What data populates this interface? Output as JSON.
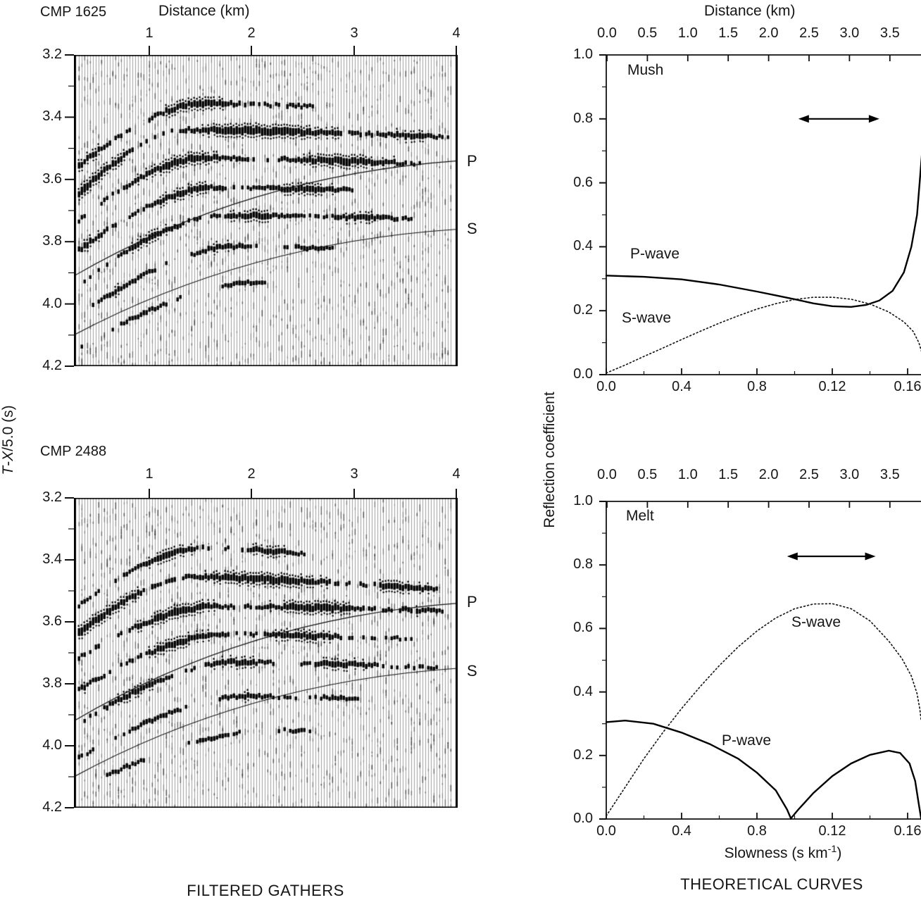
{
  "colors": {
    "ink": "#111111",
    "trace_gray": "#a0a0a0",
    "background": "#ffffff"
  },
  "left_column": {
    "ylabel": {
      "t": "T",
      "dash": "-",
      "x": "X",
      "rest": "/5.0 (s)"
    },
    "caption": "FILTERED GATHERS",
    "panels": [
      {
        "title": "CMP 1625",
        "top_axis_title": "Distance (km)",
        "top_ticks": [
          "1",
          "2",
          "3",
          "4"
        ],
        "y_ticks": [
          "3.2",
          "3.4",
          "3.6",
          "3.8",
          "4.0",
          "4.2"
        ],
        "p_label": "P",
        "s_label": "S"
      },
      {
        "title": "CMP 2488",
        "top_ticks": [
          "1",
          "2",
          "3",
          "4"
        ],
        "y_ticks": [
          "3.2",
          "3.4",
          "3.6",
          "3.8",
          "4.0",
          "4.2"
        ],
        "p_label": "P",
        "s_label": "S"
      }
    ]
  },
  "right_column": {
    "top_axis_title": "Distance (km)",
    "ylabel": "Reflection coefficient",
    "xlabel": {
      "pre": "Slowness (s km",
      "sup": "-1",
      "post": ")"
    },
    "caption": "THEORETICAL CURVES",
    "distance_ticks": [
      "0.0",
      "0.5",
      "1.0",
      "1.5",
      "2.0",
      "2.5",
      "3.0",
      "3.5"
    ],
    "slowness_ticks": [
      "0.0",
      "0.4",
      "0.8",
      "0.12",
      "0.16"
    ],
    "y_ticks": [
      "1.0",
      "0.8",
      "0.6",
      "0.4",
      "0.2",
      "0.0"
    ],
    "plots": [
      {
        "label": "Mush",
        "p_label": "P-wave",
        "s_label": "S-wave"
      },
      {
        "label": "Melt",
        "p_label": "P-wave",
        "s_label": "S-wave"
      }
    ]
  },
  "chart_data": [
    {
      "type": "seismic-gather",
      "title": "CMP 1625",
      "xlabel": "Distance (km)",
      "xlim": [
        0.27,
        4.0
      ],
      "ylabel": "T-X/5.0 (s)",
      "ylim": [
        3.2,
        4.2
      ],
      "y_increases_downward": true,
      "x_ticks": [
        1,
        2,
        3,
        4
      ],
      "y_ticks": [
        3.2,
        3.4,
        3.6,
        3.8,
        4.0,
        4.2
      ],
      "overlay_lines": {
        "P": {
          "t_left": 3.91,
          "t_right": 3.54
        },
        "S": {
          "t_left": 4.1,
          "t_right": 3.76
        }
      },
      "events_format": [
        "t_at_left_edge",
        "t_at_peak",
        "x_peak_km",
        "t_at_right_edge",
        "amplitude",
        "x_start_km",
        "x_end_km",
        "patch_freq",
        "patch_phase"
      ],
      "events": [
        [
          3.57,
          3.355,
          1.5,
          3.39,
          1.05,
          0.27,
          2.75,
          5.0,
          0.5
        ],
        [
          3.66,
          3.44,
          1.35,
          3.465,
          1.45,
          0.27,
          4.0,
          3.2,
          1.2
        ],
        [
          3.745,
          3.53,
          1.5,
          3.555,
          1.15,
          0.27,
          4.0,
          4.1,
          2.4
        ],
        [
          3.84,
          3.625,
          1.6,
          3.645,
          0.95,
          0.27,
          3.4,
          5.5,
          0.2
        ],
        [
          3.95,
          3.715,
          1.7,
          3.73,
          0.9,
          0.27,
          4.0,
          6.0,
          1.8
        ],
        [
          4.05,
          3.815,
          1.8,
          3.835,
          0.7,
          0.27,
          3.0,
          6.5,
          2.9
        ],
        [
          4.15,
          3.93,
          2.0,
          3.945,
          0.55,
          0.3,
          2.6,
          7.0,
          0.9
        ]
      ],
      "seed": 12345
    },
    {
      "type": "seismic-gather",
      "title": "CMP 2488",
      "xlabel": "Distance (km)",
      "xlim": [
        0.27,
        4.0
      ],
      "ylabel": "T-X/5.0 (s)",
      "ylim": [
        3.2,
        4.2
      ],
      "y_increases_downward": true,
      "x_ticks": [
        1,
        2,
        3,
        4
      ],
      "y_ticks": [
        3.2,
        3.4,
        3.6,
        3.8,
        4.0,
        4.2
      ],
      "overlay_lines": {
        "P": {
          "t_left": 3.92,
          "t_right": 3.54
        },
        "S": {
          "t_left": 4.1,
          "t_right": 3.75
        }
      },
      "events": [
        [
          3.56,
          3.36,
          1.5,
          3.43,
          0.95,
          0.27,
          2.7,
          5.5,
          1.5
        ],
        [
          3.65,
          3.455,
          1.4,
          3.5,
          1.35,
          0.27,
          3.95,
          3.6,
          0.3
        ],
        [
          3.725,
          3.55,
          1.6,
          3.565,
          1.25,
          0.27,
          4.0,
          4.6,
          2.0
        ],
        [
          3.83,
          3.64,
          1.7,
          3.66,
          1.0,
          0.27,
          3.7,
          5.2,
          1.1
        ],
        [
          3.94,
          3.73,
          1.8,
          3.75,
          0.85,
          0.27,
          4.0,
          6.2,
          2.6
        ],
        [
          4.05,
          3.84,
          1.9,
          3.86,
          0.65,
          0.27,
          3.3,
          6.8,
          0.7
        ],
        [
          4.15,
          3.95,
          2.1,
          3.96,
          0.5,
          0.3,
          2.9,
          7.5,
          1.9
        ]
      ],
      "seed": 67890
    },
    {
      "type": "line",
      "title": "Mush",
      "top_axis": {
        "label": "Distance (km)",
        "ticks": [
          0.0,
          0.5,
          1.0,
          1.5,
          2.0,
          2.5,
          3.0,
          3.5
        ]
      },
      "xlabel": "Slowness (s km-1)",
      "x_tick_labels_as_printed": [
        "0.0",
        "0.4",
        "0.8",
        "0.12",
        "0.16"
      ],
      "ylabel": "Reflection coefficient",
      "ylim": [
        0.0,
        1.0
      ],
      "xlim": [
        0.0,
        1.672
      ],
      "series": [
        {
          "name": "P-wave",
          "style": "solid",
          "points": [
            [
              0,
              0.31
            ],
            [
              0.2,
              0.306
            ],
            [
              0.4,
              0.298
            ],
            [
              0.6,
              0.282
            ],
            [
              0.8,
              0.26
            ],
            [
              0.9,
              0.248
            ],
            [
              1.0,
              0.236
            ],
            [
              1.1,
              0.223
            ],
            [
              1.2,
              0.214
            ],
            [
              1.3,
              0.212
            ],
            [
              1.38,
              0.218
            ],
            [
              1.45,
              0.232
            ],
            [
              1.52,
              0.262
            ],
            [
              1.58,
              0.32
            ],
            [
              1.62,
              0.4
            ],
            [
              1.65,
              0.5
            ],
            [
              1.68,
              0.72
            ]
          ]
        },
        {
          "name": "S-wave",
          "style": "dotted",
          "points": [
            [
              0,
              0.005
            ],
            [
              0.1,
              0.03
            ],
            [
              0.2,
              0.057
            ],
            [
              0.3,
              0.083
            ],
            [
              0.4,
              0.11
            ],
            [
              0.5,
              0.136
            ],
            [
              0.6,
              0.161
            ],
            [
              0.7,
              0.184
            ],
            [
              0.8,
              0.205
            ],
            [
              0.9,
              0.222
            ],
            [
              1.0,
              0.235
            ],
            [
              1.1,
              0.242
            ],
            [
              1.2,
              0.242
            ],
            [
              1.3,
              0.236
            ],
            [
              1.4,
              0.221
            ],
            [
              1.5,
              0.196
            ],
            [
              1.58,
              0.165
            ],
            [
              1.63,
              0.135
            ],
            [
              1.66,
              0.1
            ],
            [
              1.68,
              0.06
            ]
          ]
        }
      ],
      "annotations": {
        "double_arrow": {
          "x1": 1.02,
          "x2": 1.45,
          "y": 0.8
        }
      }
    },
    {
      "type": "line",
      "title": "Melt",
      "top_axis": {
        "label": "Distance (km)",
        "ticks": [
          0.0,
          0.5,
          1.0,
          1.5,
          2.0,
          2.5,
          3.0,
          3.5
        ]
      },
      "xlabel": "Slowness (s km-1)",
      "x_tick_labels_as_printed": [
        "0.0",
        "0.4",
        "0.8",
        "0.12",
        "0.16"
      ],
      "ylabel": "Reflection coefficient",
      "ylim": [
        0.0,
        1.0
      ],
      "xlim": [
        0.0,
        1.672
      ],
      "series": [
        {
          "name": "P-wave",
          "style": "solid",
          "points": [
            [
              0,
              0.305
            ],
            [
              0.1,
              0.31
            ],
            [
              0.25,
              0.3
            ],
            [
              0.4,
              0.272
            ],
            [
              0.55,
              0.236
            ],
            [
              0.7,
              0.19
            ],
            [
              0.8,
              0.146
            ],
            [
              0.9,
              0.09
            ],
            [
              0.96,
              0.03
            ],
            [
              0.98,
              0.002
            ],
            [
              1.02,
              0.03
            ],
            [
              1.1,
              0.082
            ],
            [
              1.2,
              0.135
            ],
            [
              1.3,
              0.175
            ],
            [
              1.4,
              0.202
            ],
            [
              1.5,
              0.215
            ],
            [
              1.56,
              0.208
            ],
            [
              1.61,
              0.175
            ],
            [
              1.64,
              0.12
            ],
            [
              1.66,
              0.045
            ],
            [
              1.672,
              0.0
            ]
          ]
        },
        {
          "name": "S-wave",
          "style": "dotted",
          "points": [
            [
              0,
              0.01
            ],
            [
              0.1,
              0.1
            ],
            [
              0.2,
              0.19
            ],
            [
              0.3,
              0.272
            ],
            [
              0.4,
              0.348
            ],
            [
              0.5,
              0.418
            ],
            [
              0.6,
              0.483
            ],
            [
              0.7,
              0.542
            ],
            [
              0.8,
              0.592
            ],
            [
              0.9,
              0.633
            ],
            [
              1.0,
              0.662
            ],
            [
              1.1,
              0.677
            ],
            [
              1.2,
              0.678
            ],
            [
              1.3,
              0.662
            ],
            [
              1.4,
              0.624
            ],
            [
              1.5,
              0.56
            ],
            [
              1.57,
              0.505
            ],
            [
              1.62,
              0.45
            ],
            [
              1.65,
              0.395
            ],
            [
              1.665,
              0.345
            ],
            [
              1.672,
              0.31
            ]
          ]
        }
      ],
      "annotations": {
        "double_arrow": {
          "x1": 0.96,
          "x2": 1.43,
          "y": 0.827
        }
      }
    }
  ]
}
